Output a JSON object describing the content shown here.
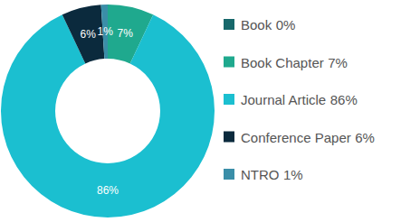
{
  "chart_data": {
    "type": "pie",
    "categories": [
      "Book",
      "Book Chapter",
      "Journal Article",
      "Conference Paper",
      "NTRO"
    ],
    "values": [
      0,
      7,
      86,
      6,
      1
    ],
    "value_labels": [
      "0%",
      "7%",
      "86%",
      "6%",
      "1%"
    ],
    "colors": [
      "#17686b",
      "#1fa98e",
      "#1bbfd0",
      "#0b2a3d",
      "#3a8ea8"
    ],
    "data_labels": true,
    "legend": "right"
  }
}
